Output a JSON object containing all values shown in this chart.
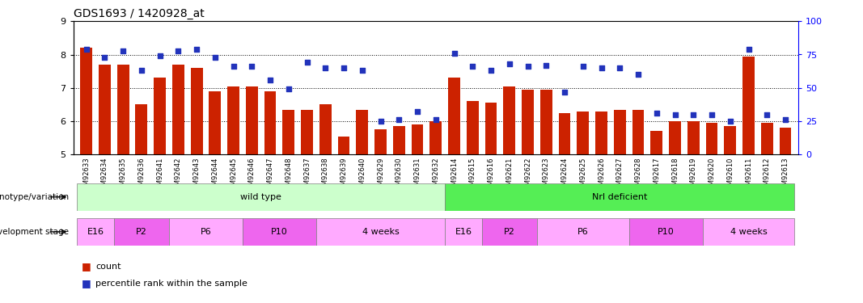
{
  "title": "GDS1693 / 1420928_at",
  "samples": [
    "GSM92633",
    "GSM92634",
    "GSM92635",
    "GSM92636",
    "GSM92641",
    "GSM92642",
    "GSM92643",
    "GSM92644",
    "GSM92645",
    "GSM92646",
    "GSM92647",
    "GSM92648",
    "GSM92637",
    "GSM92638",
    "GSM92639",
    "GSM92640",
    "GSM92629",
    "GSM92630",
    "GSM92631",
    "GSM92632",
    "GSM92614",
    "GSM92615",
    "GSM92616",
    "GSM92621",
    "GSM92622",
    "GSM92623",
    "GSM92624",
    "GSM92625",
    "GSM92626",
    "GSM92627",
    "GSM92628",
    "GSM92617",
    "GSM92618",
    "GSM92619",
    "GSM92620",
    "GSM92610",
    "GSM92611",
    "GSM92612",
    "GSM92613"
  ],
  "bar_values": [
    8.2,
    7.7,
    7.7,
    6.5,
    7.3,
    7.7,
    7.6,
    6.9,
    7.05,
    7.05,
    6.9,
    6.35,
    6.35,
    6.5,
    5.55,
    6.35,
    5.75,
    5.85,
    5.9,
    6.0,
    7.3,
    6.6,
    6.55,
    7.05,
    6.95,
    6.95,
    6.25,
    6.3,
    6.3,
    6.35,
    6.35,
    5.7,
    6.0,
    6.0,
    5.95,
    5.85,
    7.95,
    5.95,
    5.8
  ],
  "percentile_values": [
    79,
    73,
    78,
    63,
    74,
    78,
    79,
    73,
    66,
    66,
    56,
    49,
    69,
    65,
    65,
    63,
    25,
    26,
    32,
    26,
    76,
    66,
    63,
    68,
    66,
    67,
    47,
    66,
    65,
    65,
    60,
    31,
    30,
    30,
    30,
    25,
    79,
    30,
    26
  ],
  "ylim_left": [
    5,
    9
  ],
  "yticks_left": [
    5,
    6,
    7,
    8,
    9
  ],
  "ylim_right": [
    0,
    100
  ],
  "yticks_right": [
    0,
    25,
    50,
    75,
    100
  ],
  "bar_color": "#cc2200",
  "dot_color": "#2233bb",
  "genotype_groups": [
    {
      "label": "wild type",
      "start": 0,
      "end": 19,
      "color": "#ccffcc"
    },
    {
      "label": "Nrl deficient",
      "start": 20,
      "end": 38,
      "color": "#55ee55"
    }
  ],
  "stage_groups": [
    {
      "label": "E16",
      "start": 0,
      "end": 1,
      "color": "#ffaaff"
    },
    {
      "label": "P2",
      "start": 2,
      "end": 4,
      "color": "#ee66ee"
    },
    {
      "label": "P6",
      "start": 5,
      "end": 8,
      "color": "#ffaaff"
    },
    {
      "label": "P10",
      "start": 9,
      "end": 12,
      "color": "#ee66ee"
    },
    {
      "label": "4 weeks",
      "start": 13,
      "end": 19,
      "color": "#ffaaff"
    },
    {
      "label": "E16",
      "start": 20,
      "end": 21,
      "color": "#ffaaff"
    },
    {
      "label": "P2",
      "start": 22,
      "end": 24,
      "color": "#ee66ee"
    },
    {
      "label": "P6",
      "start": 25,
      "end": 29,
      "color": "#ffaaff"
    },
    {
      "label": "P10",
      "start": 30,
      "end": 33,
      "color": "#ee66ee"
    },
    {
      "label": "4 weeks",
      "start": 34,
      "end": 38,
      "color": "#ffaaff"
    }
  ],
  "geno_label": "genotype/variation",
  "stage_label": "development stage",
  "legend_count_label": "count",
  "legend_pct_label": "percentile rank within the sample",
  "xtick_bg": "#dddddd",
  "background_color": "#ffffff"
}
